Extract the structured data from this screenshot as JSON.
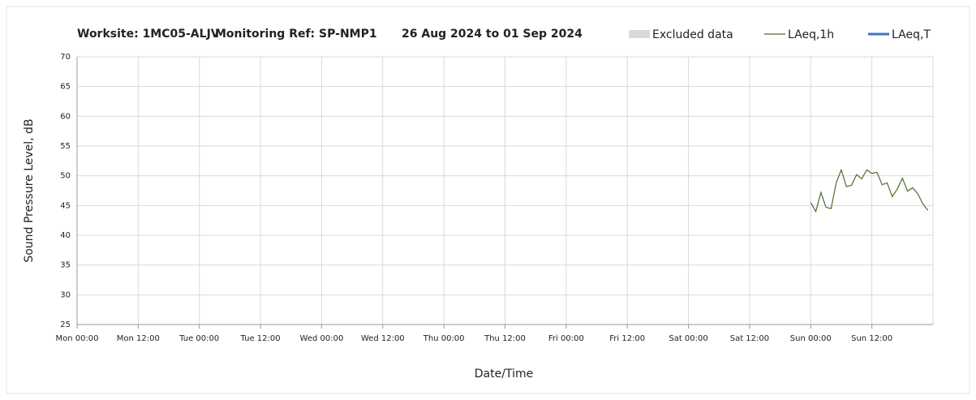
{
  "chart_data": {
    "type": "line",
    "title": [
      "Worksite: 1MC05-ALJV",
      "Monitoring Ref: SP-NMP1",
      "26 Aug 2024 to 01 Sep 2024"
    ],
    "xlabel": "Date/Time",
    "ylabel": "Sound Pressure Level, dB",
    "xlim": [
      0,
      168
    ],
    "xticks": [
      {
        "value": 0,
        "label": "Mon 00:00"
      },
      {
        "value": 12,
        "label": "Mon 12:00"
      },
      {
        "value": 24,
        "label": "Tue 00:00"
      },
      {
        "value": 36,
        "label": "Tue 12:00"
      },
      {
        "value": 48,
        "label": "Wed 00:00"
      },
      {
        "value": 60,
        "label": "Wed 12:00"
      },
      {
        "value": 72,
        "label": "Thu 00:00"
      },
      {
        "value": 84,
        "label": "Thu 12:00"
      },
      {
        "value": 96,
        "label": "Fri 00:00"
      },
      {
        "value": 108,
        "label": "Fri 12:00"
      },
      {
        "value": 120,
        "label": "Sat 00:00"
      },
      {
        "value": 132,
        "label": "Sat 12:00"
      },
      {
        "value": 144,
        "label": "Sun 00:00"
      },
      {
        "value": 156,
        "label": "Sun 12:00"
      }
    ],
    "ylim": [
      25,
      70
    ],
    "yticks": [
      25,
      30,
      35,
      40,
      45,
      50,
      55,
      60,
      65,
      70
    ],
    "grid": true,
    "series": [
      {
        "name": "Excluded data",
        "color": "#d9d9d9",
        "style": "band",
        "x": [],
        "values": []
      },
      {
        "name": "LAeq,1h",
        "color": "#4f6b2f",
        "style": "line",
        "x": [
          144,
          145,
          146,
          147,
          148,
          149,
          150,
          151,
          152,
          153,
          154,
          155,
          156,
          157,
          158,
          159,
          160,
          161,
          162,
          163,
          164,
          165,
          166,
          167
        ],
        "values": [
          45.5,
          44.0,
          47.2,
          44.7,
          44.5,
          48.8,
          51.0,
          48.2,
          48.4,
          50.2,
          49.5,
          51.0,
          50.4,
          50.6,
          48.5,
          48.8,
          46.5,
          47.8,
          49.6,
          47.4,
          48.0,
          47.0,
          45.3,
          44.2
        ]
      },
      {
        "name": "LAeq,T",
        "color": "#4472c4",
        "style": "line",
        "x": [],
        "values": []
      }
    ]
  }
}
